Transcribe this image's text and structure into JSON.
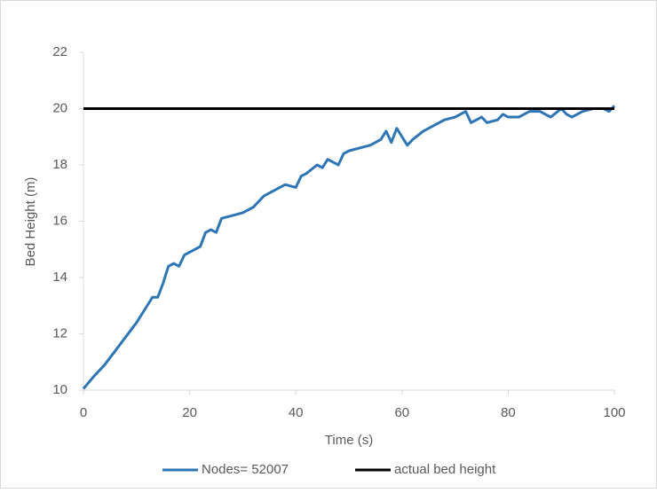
{
  "chart_data": {
    "type": "line",
    "x_label": "Time (s)",
    "y_label": "Bed Height (m)",
    "xlim": [
      0,
      100
    ],
    "xticks": [
      0,
      20,
      40,
      60,
      80,
      100
    ],
    "ylim": [
      10,
      22
    ],
    "yticks": [
      10,
      12,
      14,
      16,
      18,
      20,
      22
    ],
    "grid": false,
    "legend": "bottom",
    "series": [
      {
        "name": "Nodes= 52007",
        "color": "#2e75b6",
        "x": [
          0,
          2,
          4,
          6,
          8,
          10,
          12,
          13,
          14,
          15,
          16,
          17,
          18,
          19,
          20,
          22,
          23,
          24,
          25,
          26,
          28,
          30,
          32,
          34,
          36,
          38,
          40,
          41,
          42,
          44,
          45,
          46,
          48,
          49,
          50,
          52,
          54,
          56,
          57,
          58,
          59,
          60,
          61,
          62,
          64,
          66,
          68,
          70,
          72,
          73,
          75,
          76,
          78,
          79,
          80,
          82,
          84,
          86,
          88,
          90,
          91,
          92,
          94,
          96,
          98,
          99,
          100
        ],
        "values": [
          10.05,
          10.5,
          10.9,
          11.4,
          11.9,
          12.4,
          13.0,
          13.3,
          13.3,
          13.8,
          14.4,
          14.5,
          14.4,
          14.8,
          14.9,
          15.1,
          15.6,
          15.7,
          15.6,
          16.1,
          16.2,
          16.3,
          16.5,
          16.9,
          17.1,
          17.3,
          17.2,
          17.6,
          17.7,
          18.0,
          17.9,
          18.2,
          18.0,
          18.4,
          18.5,
          18.6,
          18.7,
          18.9,
          19.2,
          18.8,
          19.3,
          19.0,
          18.7,
          18.9,
          19.2,
          19.4,
          19.6,
          19.7,
          19.9,
          19.5,
          19.7,
          19.5,
          19.6,
          19.8,
          19.7,
          19.7,
          19.9,
          19.9,
          19.7,
          20.0,
          19.8,
          19.7,
          19.9,
          20.0,
          20.0,
          19.9,
          20.1
        ]
      },
      {
        "name": "actual bed height",
        "color": "#000000",
        "x": [
          0,
          100
        ],
        "values": [
          20,
          20
        ]
      }
    ]
  }
}
